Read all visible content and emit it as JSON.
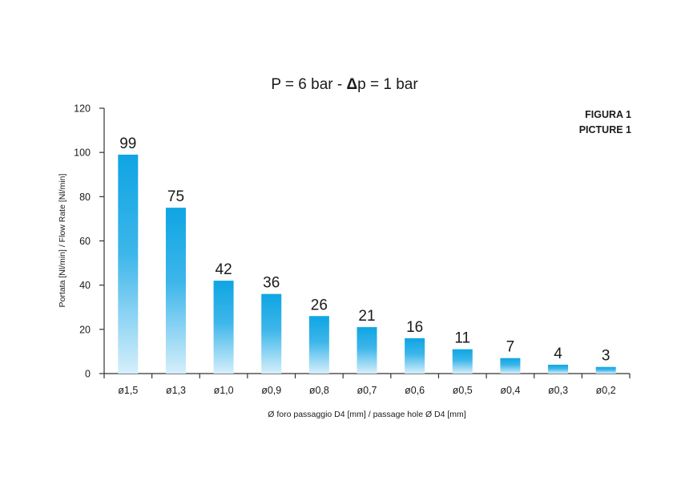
{
  "chart_data": {
    "type": "bar",
    "title_pre": "P = 6 bar - ",
    "title_delta": "Δ",
    "title_post": "p = 1 bar",
    "figure_label_it": "FIGURA 1",
    "figure_label_en": "PICTURE 1",
    "xlabel": "Ø foro passaggio D4 [mm] / passage hole Ø D4 [mm]",
    "ylabel": "Portata [Nl/min] / Flow Rate [Nl/min]",
    "categories": [
      "ø1,5",
      "ø1,3",
      "ø1,0",
      "ø0,9",
      "ø0,8",
      "ø0,7",
      "ø0,6",
      "ø0,5",
      "ø0,4",
      "ø0,3",
      "ø0,2"
    ],
    "values": [
      99,
      75,
      42,
      36,
      26,
      21,
      16,
      11,
      7,
      4,
      3
    ],
    "value_labels": [
      "99",
      "75",
      "42",
      "36",
      "26",
      "21",
      "16",
      "11",
      "7",
      "4",
      "3"
    ],
    "yticks": [
      0,
      20,
      40,
      60,
      80,
      100,
      120
    ],
    "ytick_labels": [
      "0",
      "20",
      "40",
      "60",
      "80",
      "100",
      "120"
    ],
    "ylim": [
      0,
      120
    ],
    "grid": false,
    "colors": {
      "bar_top": "#0ea5e3",
      "bar_bottom": "#d6effb",
      "axis": "#333333",
      "text": "#1a1a1a"
    }
  }
}
